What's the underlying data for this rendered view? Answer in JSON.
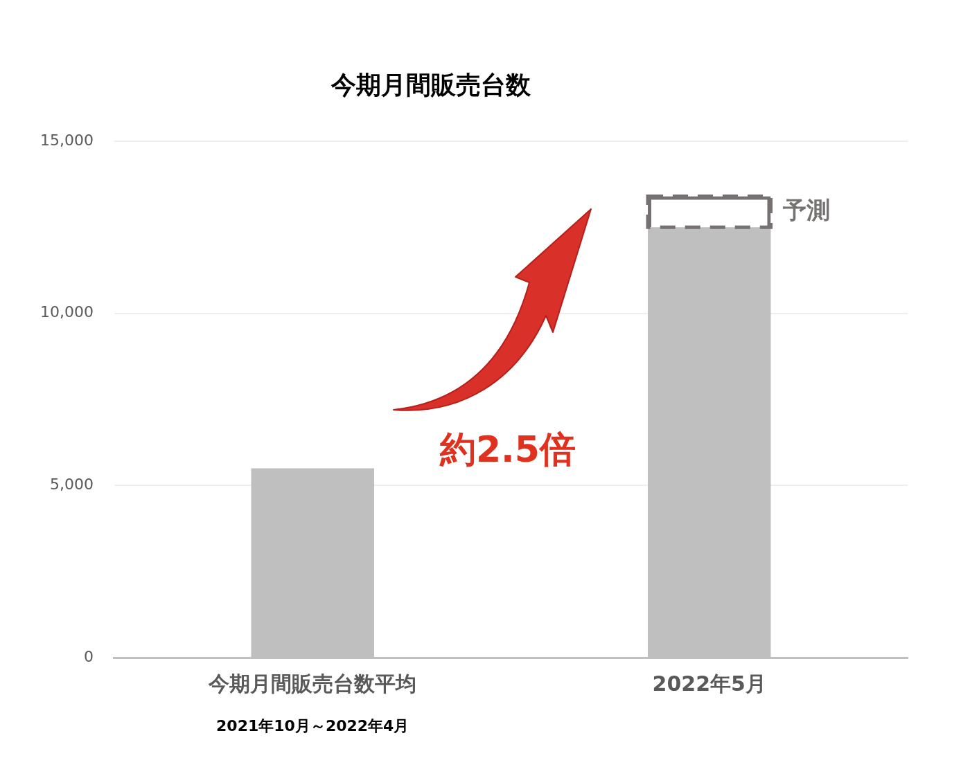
{
  "chart_data": {
    "type": "bar",
    "title": "今期月間販売台数",
    "categories": [
      "今期月間販売台数平均",
      "2022年5月"
    ],
    "stacked": true,
    "series": [
      {
        "color": "#bfbfbf",
        "values": [
          5500,
          12500
        ]
      },
      {
        "name": "予測",
        "color": "#757171",
        "line_style": "dashed",
        "values": [
          null,
          900
        ]
      }
    ],
    "ylim": [
      0,
      15000
    ],
    "yticks": [
      0,
      {
        "value": 5000,
        "label": "5,000"
      },
      {
        "value": 10000,
        "label": "10,000"
      },
      {
        "value": 15000,
        "label": "15,000"
      }
    ],
    "grid": "y",
    "legend": "top right",
    "annotations": [
      "約2.5倍",
      "2021年10月～2022年4月"
    ]
  }
}
